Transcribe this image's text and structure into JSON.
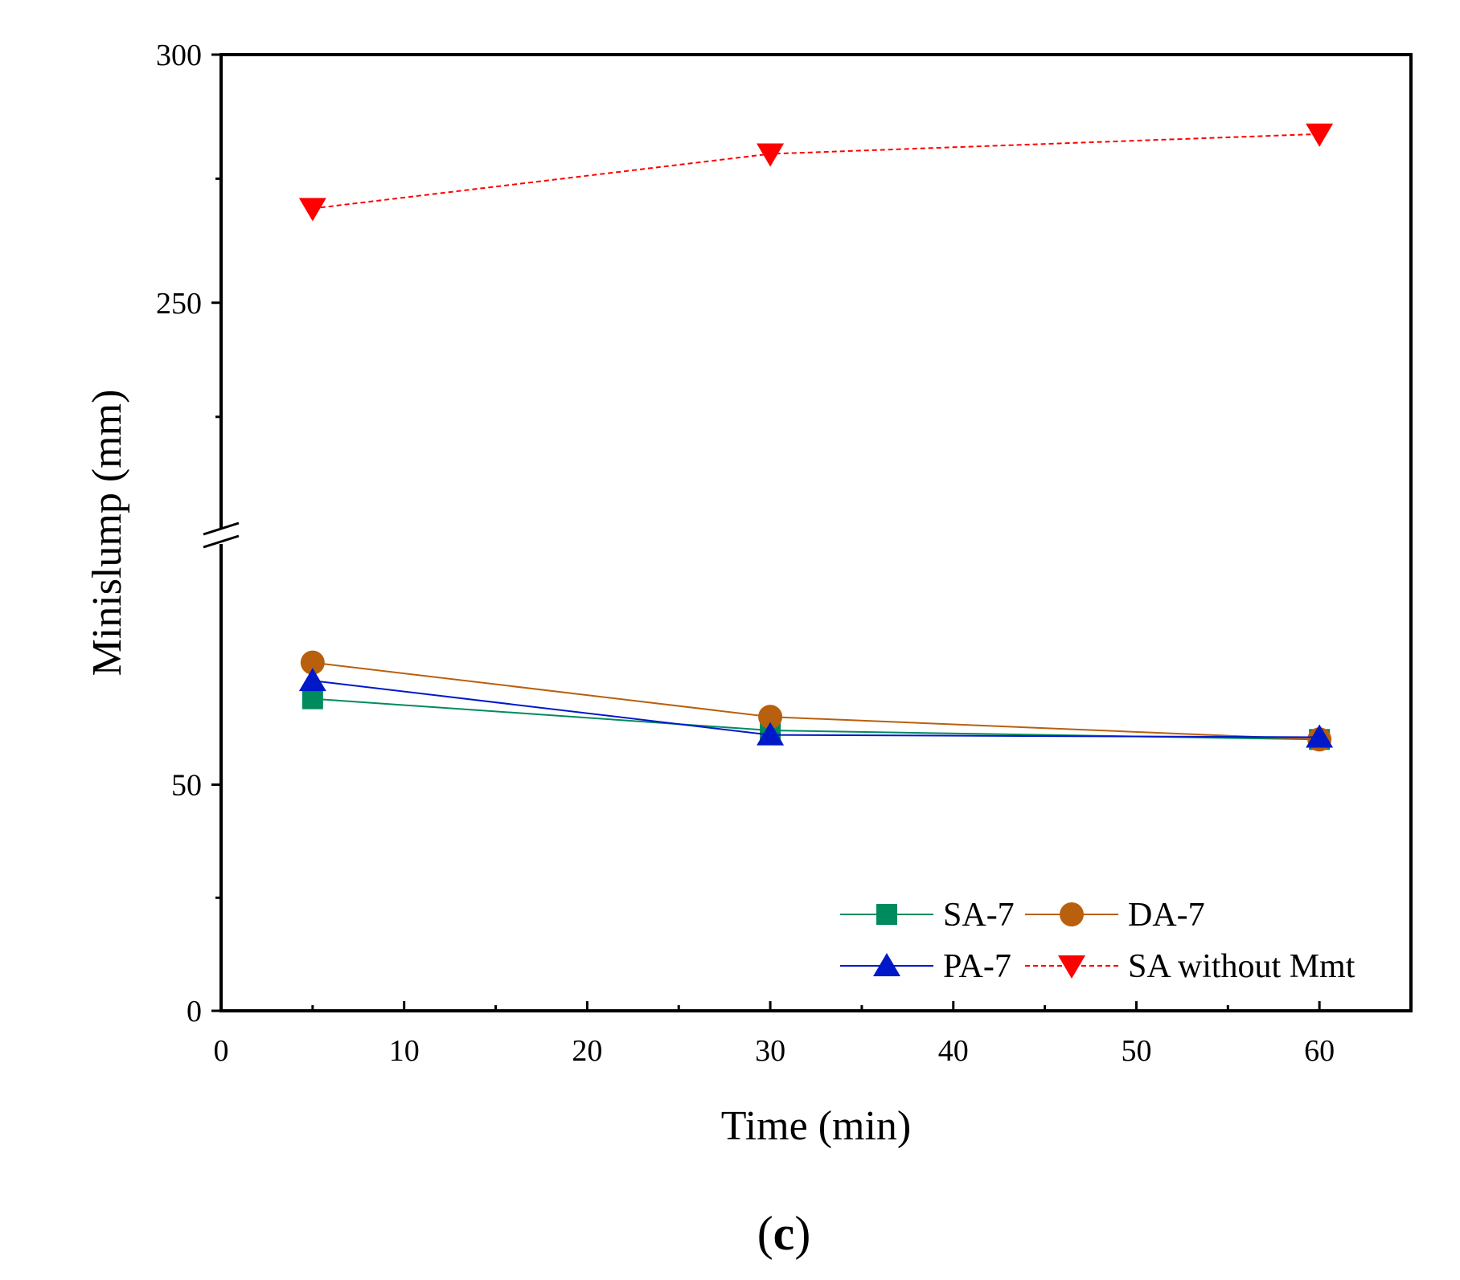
{
  "chart_data": {
    "type": "line",
    "x_title": "Time (min)",
    "y_title": "Minislump (mm)",
    "panel_label": {
      "open": "(",
      "letter": "c",
      "close": ")"
    },
    "xlim": [
      0,
      65
    ],
    "x_ticks": [
      0,
      10,
      20,
      30,
      40,
      50,
      60
    ],
    "x_tick_labels": [
      "0",
      "10",
      "20",
      "30",
      "40",
      "50",
      "60"
    ],
    "y_break": {
      "lower_range": [
        0,
        105
      ],
      "upper_range": [
        203,
        300
      ]
    },
    "y_tick_labels": [
      {
        "value": 0,
        "label": "0"
      },
      {
        "value": 50,
        "label": "50"
      },
      {
        "value": 250,
        "label": "250"
      },
      {
        "value": 300,
        "label": "300"
      }
    ],
    "y_minor_ticks": [
      25,
      275,
      227
    ],
    "series": [
      {
        "name": "SA-7",
        "color": "#008B5E",
        "marker": "square",
        "dash": "solid",
        "x": [
          5,
          30,
          60
        ],
        "y": [
          69,
          62,
          60
        ]
      },
      {
        "name": "DA-7",
        "color": "#B8600E",
        "marker": "circle",
        "dash": "solid",
        "x": [
          5,
          30,
          60
        ],
        "y": [
          77,
          65,
          60
        ]
      },
      {
        "name": "PA-7",
        "color": "#0019C8",
        "marker": "triangle-up",
        "dash": "solid",
        "x": [
          5,
          30,
          60
        ],
        "y": [
          73,
          61,
          60.5
        ]
      },
      {
        "name": "SA without Mmt",
        "color": "#FF0000",
        "marker": "triangle-down",
        "dash": "dashed",
        "x": [
          5,
          30,
          60
        ],
        "y": [
          269,
          280,
          284
        ]
      }
    ],
    "legend": {
      "position": "bottom-right",
      "columns": 2
    }
  }
}
